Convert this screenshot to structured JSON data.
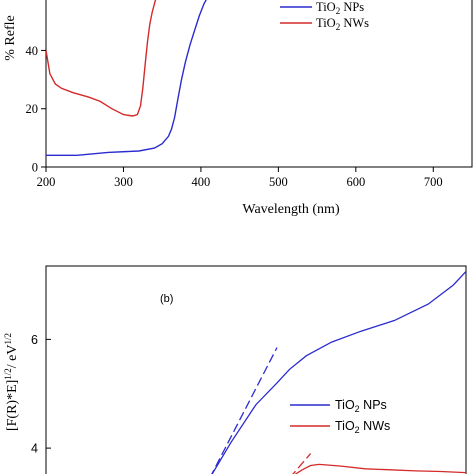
{
  "chart_data": [
    {
      "type": "line",
      "title": "",
      "xlabel": "Wavelength (nm)",
      "ylabel": "% Refle",
      "xlim": [
        200,
        750
      ],
      "ylim": [
        0,
        58
      ],
      "xticks": [
        "200",
        "300",
        "400",
        "500",
        "600",
        "700"
      ],
      "yticks": [
        "0",
        "20",
        "40"
      ],
      "legend_position": "top-right",
      "series": [
        {
          "name": "NPs",
          "color": "#2b2bd0",
          "x": [
            200,
            240,
            280,
            320,
            340,
            350,
            358,
            362,
            366,
            370,
            375,
            380,
            386,
            392,
            398,
            404,
            410
          ],
          "y": [
            4,
            4,
            5,
            5.5,
            6.5,
            8,
            10.5,
            13,
            17,
            23,
            30,
            36,
            42,
            47,
            52,
            56,
            59
          ]
        },
        {
          "name": "NWs",
          "color": "#d42a2a",
          "x": [
            200,
            205,
            212,
            220,
            235,
            255,
            270,
            285,
            300,
            312,
            318,
            322,
            325,
            328,
            331,
            334,
            337,
            341,
            346
          ],
          "y": [
            40,
            32,
            28.5,
            27,
            25.5,
            24,
            22.5,
            20,
            18,
            17.5,
            18,
            21,
            27,
            35,
            43,
            49,
            53,
            57,
            60
          ]
        }
      ],
      "legend": [
        {
          "label_base": "TiO",
          "label_sub": "2",
          "label_rest": " NPs"
        },
        {
          "label_base": "TiO",
          "label_sub": "2",
          "label_rest": " NWs"
        }
      ]
    },
    {
      "type": "line",
      "title": "",
      "panel_label": "(b)",
      "ylabel": "[F(R)*E]",
      "ylabel_sup": "1/2",
      "ylabel_mid": "/ eV",
      "ylabel_sup2": "1/2",
      "ylim": [
        3.45,
        7.35
      ],
      "yticks": [
        "4",
        "6"
      ],
      "legend_position": "right",
      "series": [
        {
          "name": "NPs",
          "color": "#2b2bd0",
          "xfrac": [
            0.39,
            0.44,
            0.5,
            0.55,
            0.58,
            0.62,
            0.68,
            0.75,
            0.83,
            0.91,
            0.97,
            1.0
          ],
          "y": [
            3.45,
            4.1,
            4.8,
            5.2,
            5.45,
            5.7,
            5.95,
            6.15,
            6.35,
            6.65,
            7.0,
            7.25
          ]
        },
        {
          "name": "NWs",
          "color": "#d42a2a",
          "xfrac": [
            0.58,
            0.61,
            0.63,
            0.65,
            0.7,
            0.76,
            0.82,
            0.88,
            0.94,
            1.0
          ],
          "y": [
            3.45,
            3.6,
            3.68,
            3.7,
            3.67,
            3.62,
            3.6,
            3.58,
            3.57,
            3.55
          ]
        }
      ],
      "fit_lines": [
        {
          "color": "#2b2bd0",
          "xfrac": [
            0.39,
            0.55
          ],
          "y": [
            3.45,
            5.85
          ]
        },
        {
          "color": "#d42a2a",
          "xfrac": [
            0.58,
            0.63
          ],
          "y": [
            3.45,
            3.9
          ]
        }
      ],
      "legend": [
        {
          "label_base": "TiO",
          "label_sub": "2",
          "label_rest": " NPs"
        },
        {
          "label_base": "TiO",
          "label_sub": "2",
          "label_rest": " NWs"
        }
      ]
    }
  ]
}
